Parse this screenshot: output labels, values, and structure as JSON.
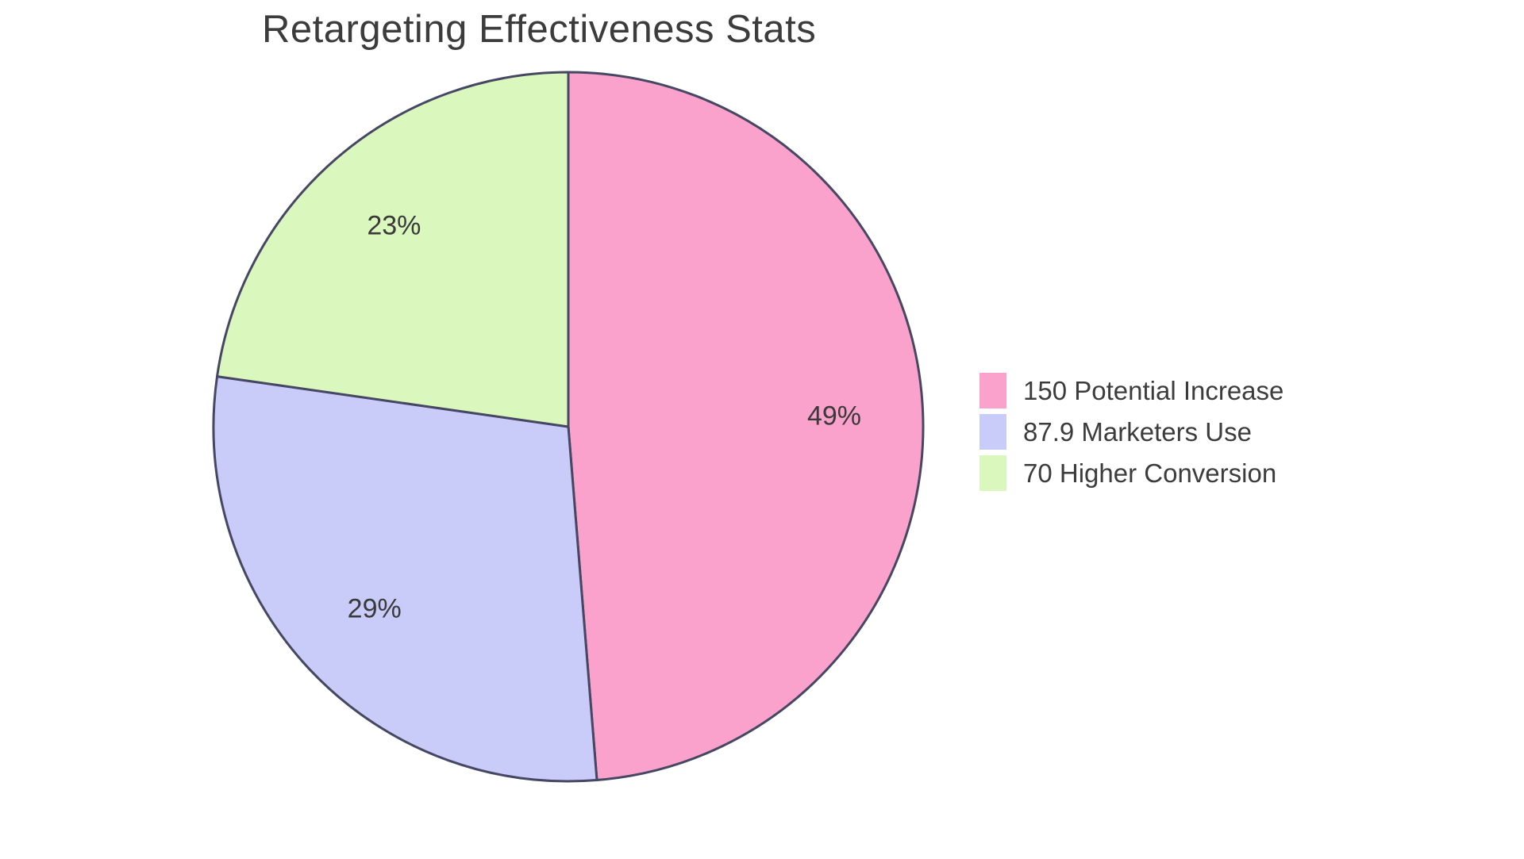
{
  "chart_data": {
    "type": "pie",
    "title": "Retargeting Effectiveness Stats",
    "slices": [
      {
        "label": "150 Potential Increase",
        "value": 150,
        "pct_label": "49%",
        "color": "#fba2cc"
      },
      {
        "label": "87.9 Marketers Use",
        "value": 87.9,
        "pct_label": "29%",
        "color": "#c9cbf8"
      },
      {
        "label": "70 Higher Conversion",
        "value": 70,
        "pct_label": "23%",
        "color": "#daf7bd"
      }
    ],
    "start_angle": "12-o'clock",
    "direction": "clockwise",
    "legend_position": "right",
    "grid": "off",
    "colors": {
      "slice_stroke": "#454763",
      "title_text": "#3c3c3c",
      "pct_label_text": "#3a3a3a",
      "legend_text": "#3c3c3c",
      "background": "#ffffff"
    }
  }
}
